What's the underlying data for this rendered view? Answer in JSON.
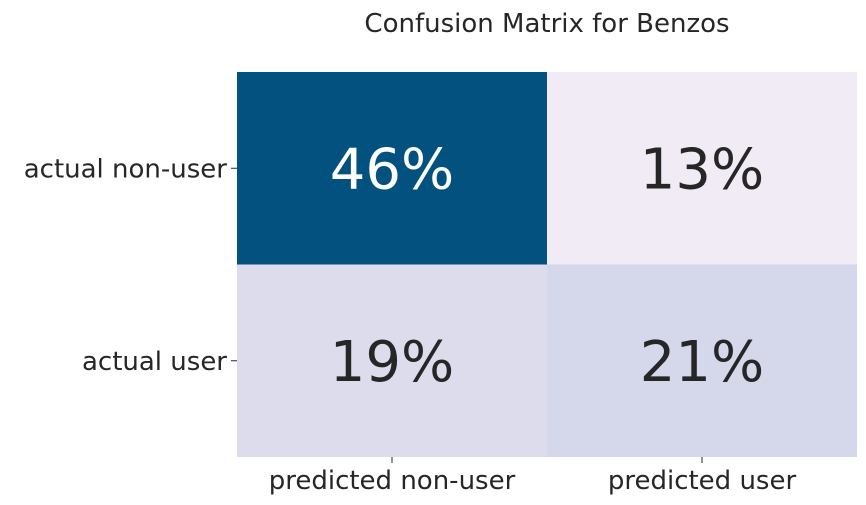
{
  "chart_data": {
    "type": "heatmap",
    "title": "Confusion Matrix for Benzos",
    "xlabel": "",
    "ylabel": "",
    "x_categories": [
      "predicted non-user",
      "predicted user"
    ],
    "y_categories": [
      "actual non-user",
      "actual user"
    ],
    "values": [
      [
        46,
        13
      ],
      [
        19,
        21
      ]
    ],
    "value_format": "%",
    "cell_labels": [
      [
        "46%",
        "13%"
      ],
      [
        "19%",
        "21%"
      ]
    ],
    "colorbar": false,
    "grid": false,
    "colors": {
      "low": "#f1ebf6",
      "mid": "#c9cee4",
      "high": "#03517e",
      "text_dark": "#262626",
      "text_light": "#ffffff"
    }
  }
}
